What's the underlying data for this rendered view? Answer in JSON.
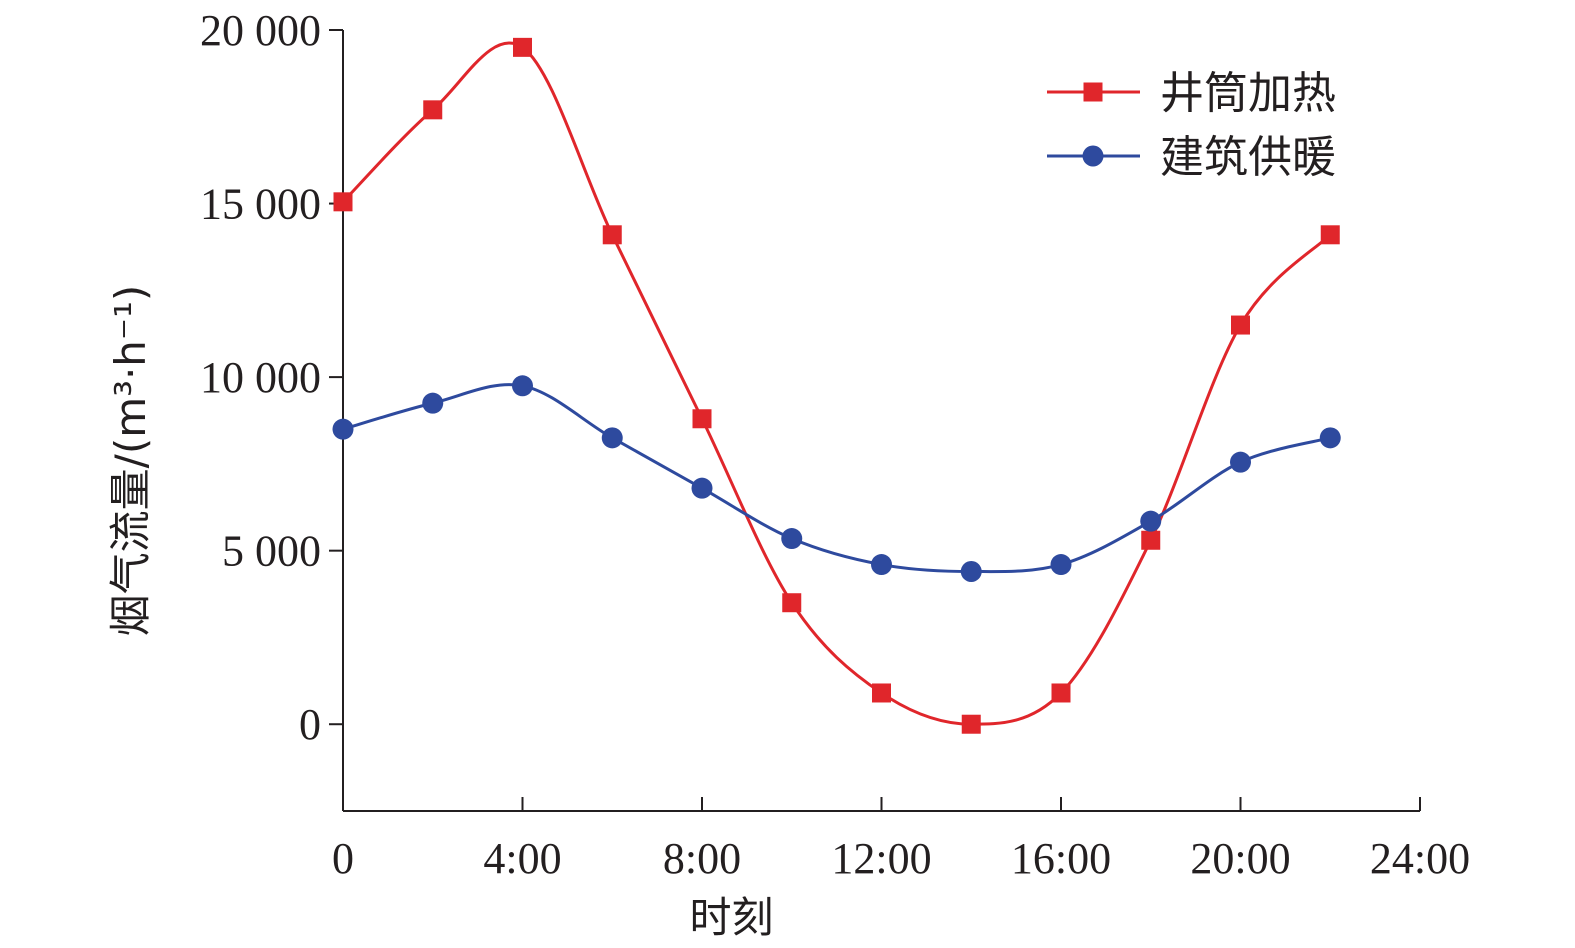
{
  "chart_data": {
    "type": "line",
    "title": "",
    "xlabel": "时刻",
    "ylabel": "烟气流量/(m³·h⁻¹)",
    "x": [
      0,
      2,
      4,
      6,
      8,
      10,
      12,
      14,
      16,
      18,
      20,
      22
    ],
    "x_unit": "hour of day",
    "xlim": [
      0,
      24
    ],
    "ylim": [
      -2500,
      20000
    ],
    "x_ticks": [
      {
        "value": 0,
        "label": "0"
      },
      {
        "value": 4,
        "label": "4:00"
      },
      {
        "value": 8,
        "label": "8:00"
      },
      {
        "value": 12,
        "label": "12:00"
      },
      {
        "value": 16,
        "label": "16:00"
      },
      {
        "value": 20,
        "label": "20:00"
      },
      {
        "value": 24,
        "label": "24:00"
      }
    ],
    "y_ticks": [
      {
        "value": 0,
        "label": "0"
      },
      {
        "value": 5000,
        "label": "5 000"
      },
      {
        "value": 10000,
        "label": "10 000"
      },
      {
        "value": 15000,
        "label": "15 000"
      },
      {
        "value": 20000,
        "label": "20 000"
      }
    ],
    "grid": false,
    "smooth": true,
    "legend_position": "top-right",
    "series": [
      {
        "name": "井筒加热",
        "color": "#e0262b",
        "marker": "square",
        "values": [
          15050,
          17700,
          19500,
          14100,
          8800,
          3500,
          900,
          0,
          900,
          5300,
          11500,
          14100
        ]
      },
      {
        "name": "建筑供暖",
        "color": "#2e4a9e",
        "marker": "circle",
        "values": [
          8500,
          9250,
          9750,
          8250,
          6800,
          5350,
          4600,
          4400,
          4600,
          5850,
          7550,
          8250
        ]
      }
    ]
  }
}
